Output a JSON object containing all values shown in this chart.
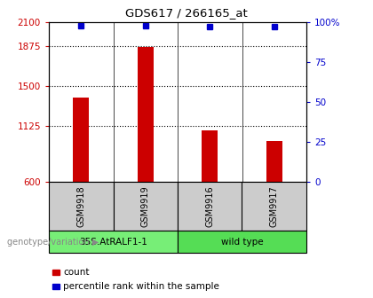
{
  "title": "GDS617 / 266165_at",
  "samples": [
    "GSM9918",
    "GSM9919",
    "GSM9916",
    "GSM9917"
  ],
  "counts": [
    1390,
    1870,
    1080,
    980
  ],
  "percentile_ranks": [
    98,
    98,
    97,
    97
  ],
  "ylim_left": [
    600,
    2100
  ],
  "yticks_left": [
    600,
    1125,
    1500,
    1875,
    2100
  ],
  "yticks_right": [
    0,
    25,
    50,
    75,
    100
  ],
  "ytick_right_labels": [
    "0",
    "25",
    "50",
    "75",
    "100%"
  ],
  "bar_color": "#cc0000",
  "dot_color": "#0000cc",
  "groups": [
    {
      "label": "35S.AtRALF1-1",
      "color": "#77ee77"
    },
    {
      "label": "wild type",
      "color": "#55dd55"
    }
  ],
  "group_label_prefix": "genotype/variation",
  "legend_count_label": "count",
  "legend_percentile_label": "percentile rank within the sample",
  "background_color": "#ffffff",
  "sample_bg_color": "#cccccc"
}
